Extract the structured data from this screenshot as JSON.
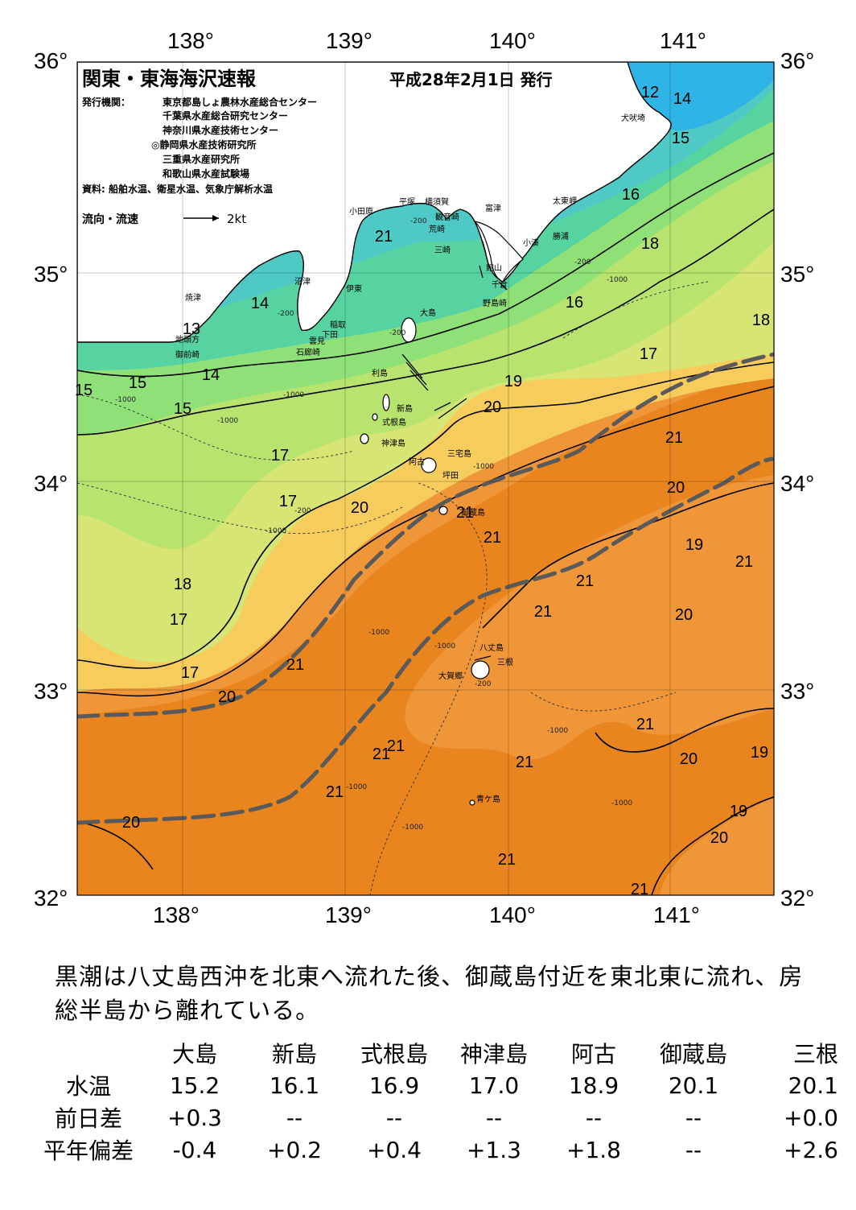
{
  "map": {
    "title": "関東・東海海沢速報",
    "issue_date": "平成28年2月1日 発行",
    "issuer_label": "発行機関：",
    "issuers": [
      "東京都島しょ農林水産総合センター",
      "千葉県水産総合研究センター",
      "神奈川県水産技術センター",
      "◎静岡県水産技術研究所",
      "三重県水産研究所",
      "和歌山県水産試験場"
    ],
    "source": "資料: 船舶水温、衛星水温、気象庁解析水温",
    "flow_legend_label": "流向・流速",
    "flow_legend_unit": "2kt",
    "lon_labels": [
      "138°",
      "139°",
      "140°",
      "141°"
    ],
    "lat_labels": [
      "36°",
      "35°",
      "34°",
      "33°",
      "32°"
    ],
    "place_names": [
      "小田原",
      "平塚",
      "横須賀",
      "観音崎",
      "荒崎",
      "三崎",
      "富津",
      "館山",
      "千倉",
      "野島崎",
      "太東岬",
      "勝浦",
      "小湊",
      "犬吠埼",
      "沼津",
      "伊東",
      "大島",
      "稲取",
      "下田",
      "雲見",
      "石廊崎",
      "焼津",
      "地頭方",
      "御前崎",
      "利島",
      "新島",
      "式根島",
      "神津島",
      "三宅島",
      "阿古",
      "坪田",
      "御蔵島",
      "八丈島",
      "三根",
      "大賀郷",
      "青ケ島"
    ],
    "temp_labels": [
      "12",
      "14",
      "15",
      "16",
      "18",
      "14",
      "13",
      "14",
      "15",
      "15",
      "15",
      "16",
      "18",
      "17",
      "19",
      "20",
      "21",
      "20",
      "21",
      "17",
      "17",
      "20",
      "21",
      "19",
      "21",
      "18",
      "17",
      "17",
      "21",
      "21",
      "20",
      "21",
      "20",
      "21",
      "21",
      "21",
      "21",
      "20",
      "19",
      "21",
      "21",
      "19",
      "20",
      "20",
      "21",
      "21"
    ],
    "depth_labels": [
      "-200",
      "-200",
      "-200",
      "-1000",
      "-1000",
      "-1000",
      "-1000",
      "-200",
      "-1000",
      "-1000",
      "-1000",
      "-200",
      "-1000",
      "-200",
      "-1000",
      "-1000",
      "-1000",
      "-1000"
    ]
  },
  "summary": "黒潮は八丈島西沖を北東へ流れた後、御蔵島付近を東北東に流れ、房総半島から離れている。",
  "stats": {
    "stations": [
      "大島",
      "新島",
      "式根島",
      "神津島",
      "阿古",
      "御蔵島",
      "三根"
    ],
    "rows": [
      {
        "label": "水温",
        "values": [
          "15.2",
          "16.1",
          "16.9",
          "17.0",
          "18.9",
          "20.1",
          "20.1"
        ]
      },
      {
        "label": "前日差",
        "values": [
          "+0.3",
          "--",
          "--",
          "--",
          "--",
          "--",
          "+0.0"
        ]
      },
      {
        "label": "平年偏差",
        "values": [
          "-0.4",
          "+0.2",
          "+0.4",
          "+1.3",
          "+1.8",
          "--",
          "+2.6"
        ]
      }
    ]
  },
  "colors": {
    "cold": "#2fb4e6",
    "cool": "#57d3a2",
    "mild": "#8fe077",
    "warm": "#d7e574",
    "warmer": "#f6cc5c",
    "hot": "#ee9638",
    "hotter": "#e8851f",
    "kuroshio_line": "#5a5a5a"
  }
}
